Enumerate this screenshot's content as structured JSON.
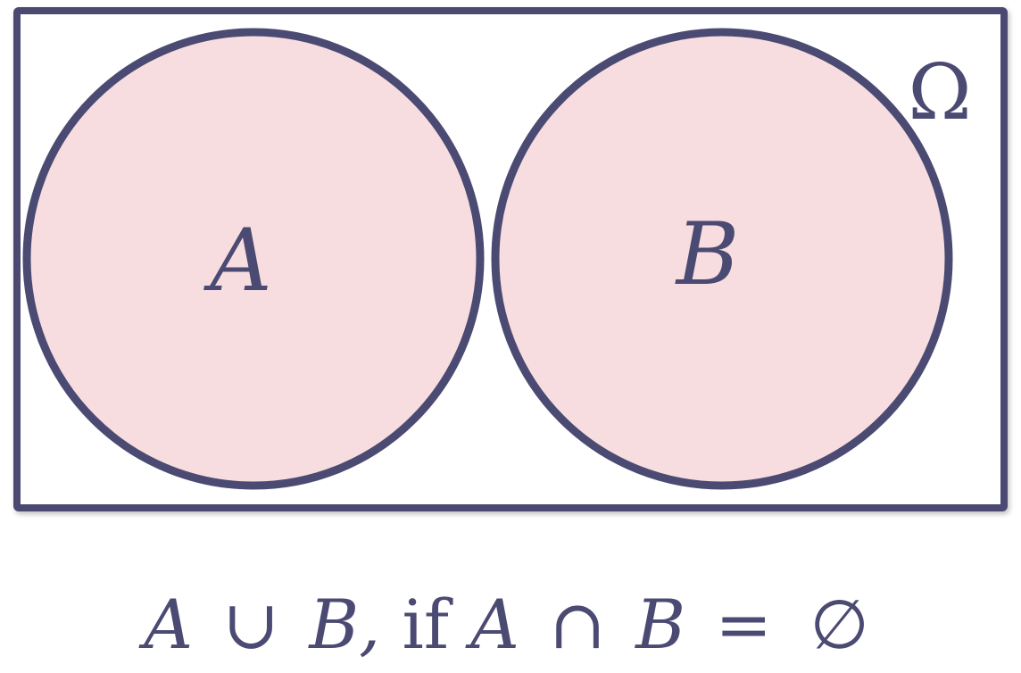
{
  "colors": {
    "stroke": "#4b4a72",
    "fill": "#f8dde0",
    "background": "#ffffff"
  },
  "diagram": {
    "universe_label": "Ω",
    "sets": [
      {
        "label": "A"
      },
      {
        "label": "B"
      }
    ]
  },
  "caption": {
    "set_a": "A",
    "union_op": "∪",
    "set_b": "B,",
    "condition_word": "if",
    "set_a_2": "A",
    "intersection_op": "∩",
    "set_b_2": "B",
    "equals_op": "=",
    "empty_set": "∅"
  }
}
